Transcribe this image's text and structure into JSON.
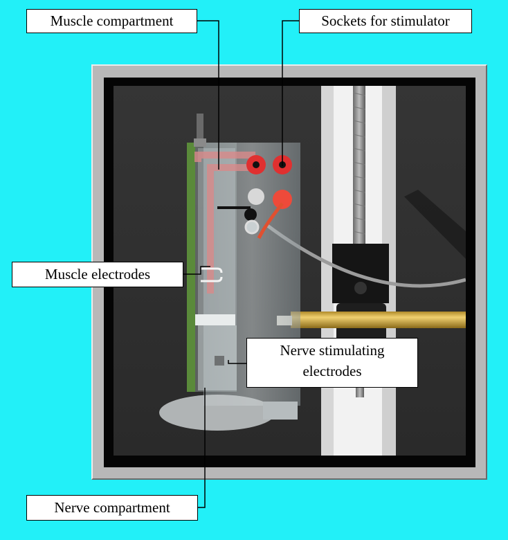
{
  "labels": {
    "muscle_compartment": "Muscle compartment",
    "sockets_for_stimulator": "Sockets for stimulator",
    "muscle_electrodes": "Muscle electrodes",
    "nerve_stimulating_line1": "Nerve stimulating",
    "nerve_stimulating_line2": "electrodes",
    "nerve_compartment": "Nerve compartment"
  },
  "colors": {
    "background": "#22f0f8",
    "frame": "#b8b8b8",
    "label_fill": "#ffffff",
    "leader_line": "#000000"
  }
}
